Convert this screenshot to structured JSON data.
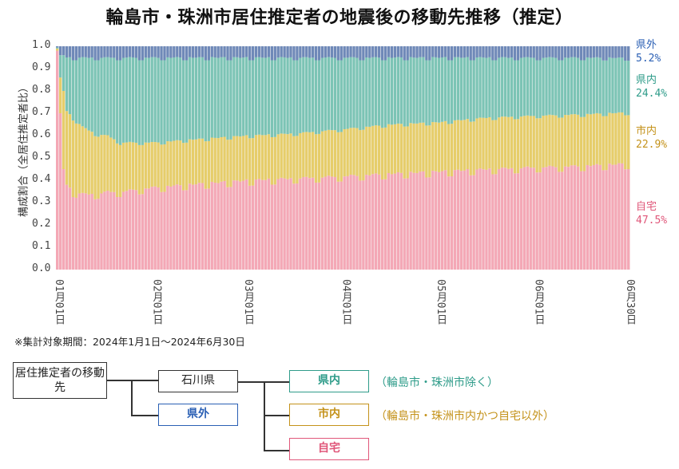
{
  "title": "輪島市・珠洲市居住推定者の地震後の移動先推移（推定）",
  "colors": {
    "self_home": "#f4a8b6",
    "city_in": "#e6cd6a",
    "pref_in": "#7cc4b5",
    "pref_out": "#6f89b8",
    "self_home_text": "#e0577a",
    "city_in_text": "#c4921a",
    "pref_in_text": "#2f9c8a",
    "pref_out_text": "#2a5fb4"
  },
  "chart_data": {
    "type": "bar",
    "stacked": true,
    "normalized": true,
    "title": "輪島市・珠洲市居住推定者の地震後の移動先推移（推定）",
    "ylabel": "構成割合（全居住推定者比）",
    "xlabel": "",
    "ylim": [
      0,
      1.0
    ],
    "yticks": [
      "0.0",
      "0.1",
      "0.2",
      "0.3",
      "0.4",
      "0.5",
      "0.6",
      "0.7",
      "0.8",
      "0.9",
      "1.0"
    ],
    "x_tick_labels": [
      "01月01日",
      "02月01日",
      "03月01日",
      "04月01日",
      "05月01日",
      "06月01日",
      "06月30日"
    ],
    "x_tick_days": [
      0,
      31,
      60,
      91,
      121,
      152,
      181
    ],
    "n_days": 182,
    "anchors": {
      "days": [
        0,
        1,
        2,
        3,
        5,
        8,
        12,
        16,
        20,
        25,
        31,
        40,
        50,
        60,
        75,
        91,
        105,
        121,
        135,
        152,
        165,
        181
      ],
      "self_home": [
        0.98,
        0.7,
        0.45,
        0.38,
        0.35,
        0.34,
        0.34,
        0.35,
        0.35,
        0.36,
        0.37,
        0.38,
        0.39,
        0.4,
        0.41,
        0.42,
        0.43,
        0.44,
        0.45,
        0.46,
        0.465,
        0.475
      ],
      "city_in": [
        0.01,
        0.16,
        0.35,
        0.33,
        0.33,
        0.3,
        0.27,
        0.25,
        0.22,
        0.21,
        0.2,
        0.2,
        0.2,
        0.2,
        0.2,
        0.21,
        0.22,
        0.22,
        0.23,
        0.23,
        0.23,
        0.229
      ],
      "pref_in": [
        0.005,
        0.1,
        0.16,
        0.24,
        0.27,
        0.31,
        0.34,
        0.35,
        0.38,
        0.38,
        0.38,
        0.37,
        0.36,
        0.35,
        0.34,
        0.32,
        0.3,
        0.29,
        0.27,
        0.26,
        0.255,
        0.244
      ]
    },
    "series": [
      {
        "name": "自宅",
        "final_value": "47.5%"
      },
      {
        "name": "市内",
        "final_value": "22.9%"
      },
      {
        "name": "県内",
        "final_value": "24.4%"
      },
      {
        "name": "県外",
        "final_value": "5.2%"
      }
    ]
  },
  "end_labels": {
    "pref_out": {
      "name": "県外",
      "value": "5.2%"
    },
    "pref_in": {
      "name": "県内",
      "value": "24.4%"
    },
    "city_in": {
      "name": "市内",
      "value": "22.9%"
    },
    "self_home": {
      "name": "自宅",
      "value": "47.5%"
    }
  },
  "note": "※集計対象期間：2024年1月1日～2024年6月30日",
  "diagram": {
    "root": "居住推定者の移動先",
    "ishikawa": "石川県",
    "kengai": "県外",
    "kennai": "県内",
    "shinai": "市内",
    "jitaku": "自宅",
    "kennai_desc": "（輪島市・珠洲市除く）",
    "shinai_desc": "（輪島市・珠洲市内かつ自宅以外）"
  }
}
